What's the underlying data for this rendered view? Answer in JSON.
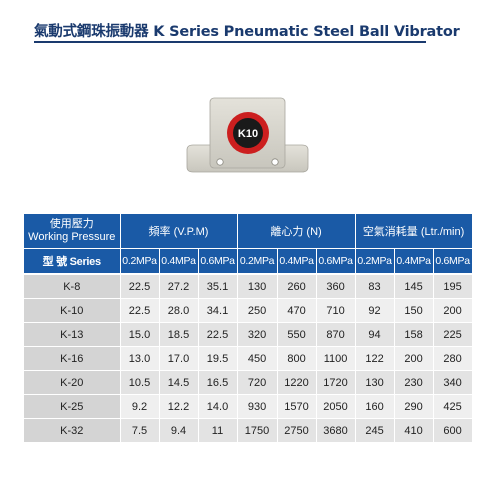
{
  "title": "氣動式鋼珠振動器  K Series  Pneumatic Steel Ball Vibrator",
  "product": {
    "label": "K10",
    "colors": {
      "body": "#d6d4cc",
      "ring": "#cc1f1f",
      "core": "#1a1a1a"
    }
  },
  "table": {
    "col1_header_line1": "使用壓力",
    "col1_header_line2": "Working Pressure",
    "group_headers": [
      "頻率 (V.P.M)",
      "離心力 (N)",
      "空氣消耗量 (Ltr./min)"
    ],
    "series_label": "型 號 Series",
    "pressure_labels": [
      "0.2MPa",
      "0.4MPa",
      "0.6MPa",
      "0.2MPa",
      "0.4MPa",
      "0.6MPa",
      "0.2MPa",
      "0.4MPa",
      "0.6MPa"
    ],
    "rows": [
      {
        "model": "K-8",
        "values": [
          "22.5",
          "27.2",
          "35.1",
          "130",
          "260",
          "360",
          "83",
          "145",
          "195"
        ]
      },
      {
        "model": "K-10",
        "values": [
          "22.5",
          "28.0",
          "34.1",
          "250",
          "470",
          "710",
          "92",
          "150",
          "200"
        ]
      },
      {
        "model": "K-13",
        "values": [
          "15.0",
          "18.5",
          "22.5",
          "320",
          "550",
          "870",
          "94",
          "158",
          "225"
        ]
      },
      {
        "model": "K-16",
        "values": [
          "13.0",
          "17.0",
          "19.5",
          "450",
          "800",
          "1100",
          "122",
          "200",
          "280"
        ]
      },
      {
        "model": "K-20",
        "values": [
          "10.5",
          "14.5",
          "16.5",
          "720",
          "1220",
          "1720",
          "130",
          "230",
          "340"
        ]
      },
      {
        "model": "K-25",
        "values": [
          "9.2",
          "12.2",
          "14.0",
          "930",
          "1570",
          "2050",
          "160",
          "290",
          "425"
        ]
      },
      {
        "model": "K-32",
        "values": [
          "7.5",
          "9.4",
          "11",
          "1750",
          "2750",
          "3680",
          "245",
          "410",
          "600"
        ]
      }
    ]
  }
}
